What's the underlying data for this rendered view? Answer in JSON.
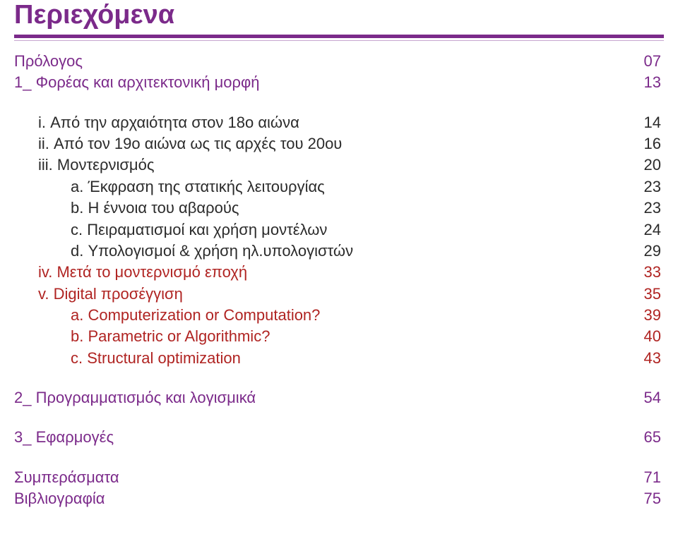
{
  "colors": {
    "title": "#7b2a8a",
    "rule": "#7b2a8a",
    "rule_light": "#c7a6d0",
    "text_purple": "#7b2a8a",
    "text_black": "#2b2b2b",
    "text_red": "#b02422",
    "background": "#ffffff"
  },
  "typography": {
    "title_size": 38,
    "body_size": 22,
    "line_height": 1.38,
    "font_family": "Century Gothic / Futura"
  },
  "title": "Περιεχόμενα",
  "block1": [
    {
      "label": "Πρόλογος",
      "page": "07",
      "indent": 0,
      "color": "purple"
    },
    {
      "label": "1_ Φορέας και αρχιτεκτονική μορφή",
      "page": "13",
      "indent": 0,
      "color": "purple"
    }
  ],
  "block2": [
    {
      "label": "i. Από την αρχαιότητα στον 18ο αιώνα",
      "page": "14",
      "indent": 1,
      "color": "black"
    },
    {
      "label": "ii. Από τον 19ο αιώνα ως τις αρχές του 20ου",
      "page": "16",
      "indent": 1,
      "color": "black"
    },
    {
      "label": "iii. Μοντερνισμός",
      "page": "20",
      "indent": 1,
      "color": "black"
    },
    {
      "label": "a. Έκφραση της στατικής λειτουργίας",
      "page": "23",
      "indent": 2,
      "color": "black"
    },
    {
      "label": "b. Η έννοια του αβαρούς",
      "page": "23",
      "indent": 2,
      "color": "black"
    },
    {
      "label": "c. Πειραματισμοί και χρήση μοντέλων",
      "page": "24",
      "indent": 2,
      "color": "black"
    },
    {
      "label": "d. Υπολογισμοί & χρήση ηλ.υπολογιστών",
      "page": "29",
      "indent": 2,
      "color": "black"
    },
    {
      "label": "iv. Μετά το μοντερνισμό εποχή",
      "page": "33",
      "indent": 1,
      "color": "red"
    },
    {
      "label": "v. Digital προσέγγιση",
      "page": "35",
      "indent": 1,
      "color": "red"
    },
    {
      "label": "a. Computerization or Computation?",
      "page": "39",
      "indent": 2,
      "color": "red"
    },
    {
      "label": "b. Parametric or Algorithmic?",
      "page": "40",
      "indent": 2,
      "color": "red"
    },
    {
      "label": "c. Structural optimization",
      "page": "43",
      "indent": 2,
      "color": "red"
    }
  ],
  "block3": [
    {
      "label": "2_ Προγραμματισμός και λογισμικά",
      "page": "54",
      "indent": 0,
      "color": "purple"
    }
  ],
  "block4": [
    {
      "label": "3_ Εφαρμογές",
      "page": "65",
      "indent": 0,
      "color": "purple"
    }
  ],
  "block5": [
    {
      "label": "Συμπεράσματα",
      "page": "71",
      "indent": 0,
      "color": "purple"
    },
    {
      "label": "Βιβλιογραφία",
      "page": "75",
      "indent": 0,
      "color": "purple"
    }
  ]
}
